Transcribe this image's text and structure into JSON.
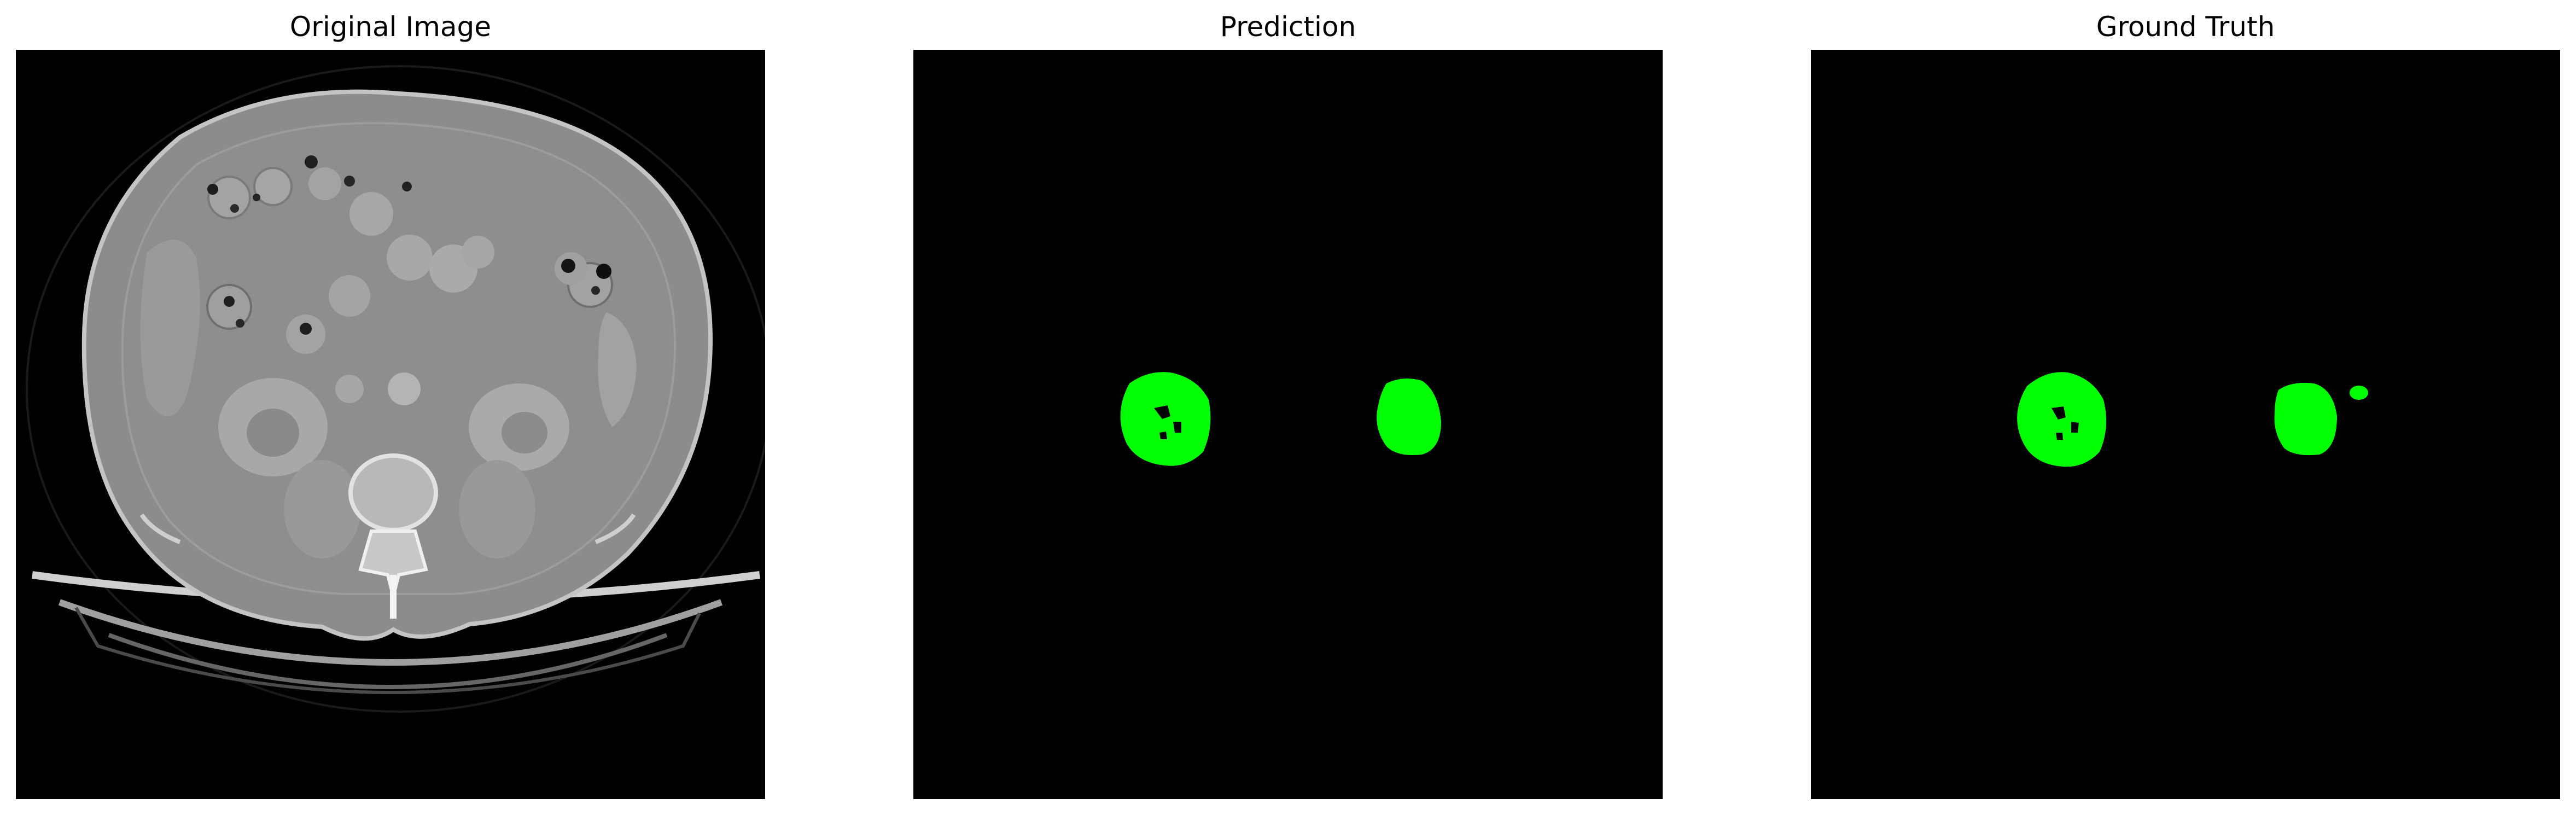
{
  "figure": {
    "panels": [
      {
        "title": "Original Image",
        "content": "ct-scan"
      },
      {
        "title": "Prediction",
        "content": "segmentation-mask"
      },
      {
        "title": "Ground Truth",
        "content": "segmentation-mask"
      }
    ],
    "colors": {
      "background": "#ffffff",
      "image_background": "#000000",
      "mask": "#00ff00",
      "ct_body": "#8e8e8e",
      "ct_bone": "#d8d8d8"
    }
  }
}
